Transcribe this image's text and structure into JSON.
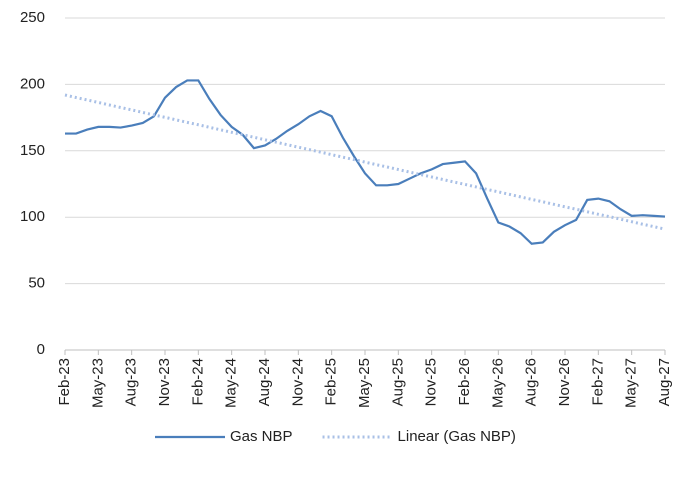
{
  "chart_data": {
    "type": "line",
    "categories": [
      "Feb-23",
      null,
      null,
      "May-23",
      null,
      null,
      "Aug-23",
      null,
      null,
      "Nov-23",
      null,
      null,
      "Feb-24",
      null,
      null,
      "May-24",
      null,
      null,
      "Aug-24",
      null,
      null,
      "Nov-24",
      null,
      null,
      "Feb-25",
      null,
      null,
      "May-25",
      null,
      null,
      "Aug-25",
      null,
      null,
      "Nov-25",
      null,
      null,
      "Feb-26",
      null,
      null,
      "May-26",
      null,
      null,
      "Aug-26",
      null,
      null,
      "Nov-26",
      null,
      null,
      "Feb-27",
      null,
      null,
      "May-27",
      null,
      null,
      "Aug-27"
    ],
    "series": [
      {
        "name": "Gas NBP",
        "color": "#4a7ebb",
        "style": "solid",
        "values": [
          163,
          163,
          166,
          168,
          168,
          167.5,
          169,
          171,
          176,
          190,
          198,
          203,
          203,
          189,
          177,
          168,
          162,
          152,
          154,
          159,
          165,
          170,
          176,
          180,
          176,
          160,
          146,
          133,
          124,
          124,
          125,
          129,
          133,
          136,
          140,
          141,
          142,
          133,
          114,
          96,
          93,
          88,
          80,
          81,
          89,
          94,
          98,
          113,
          114,
          112,
          106,
          101,
          101.5,
          101,
          100.5
        ]
      },
      {
        "name": "Linear (Gas NBP)",
        "color": "#a9c0e6",
        "style": "dotted",
        "values": [
          192.0,
          190.1,
          188.3,
          186.4,
          184.5,
          182.6,
          180.8,
          178.9,
          177.0,
          175.2,
          173.3,
          171.4,
          169.6,
          167.7,
          165.8,
          163.9,
          162.1,
          160.2,
          158.3,
          156.5,
          154.6,
          152.7,
          150.9,
          149.0,
          147.1,
          145.2,
          143.4,
          141.5,
          139.6,
          137.8,
          135.9,
          134.0,
          132.1,
          130.3,
          128.4,
          126.5,
          124.7,
          122.8,
          120.9,
          119.1,
          117.2,
          115.3,
          113.4,
          111.6,
          109.7,
          107.8,
          106.0,
          104.1,
          102.2,
          100.4,
          98.5,
          96.6,
          94.7,
          92.9,
          91.0
        ]
      }
    ],
    "ylim": [
      0,
      250
    ],
    "yticks": [
      0,
      50,
      100,
      150,
      200,
      250
    ],
    "grid": true,
    "legend": "bottom"
  }
}
